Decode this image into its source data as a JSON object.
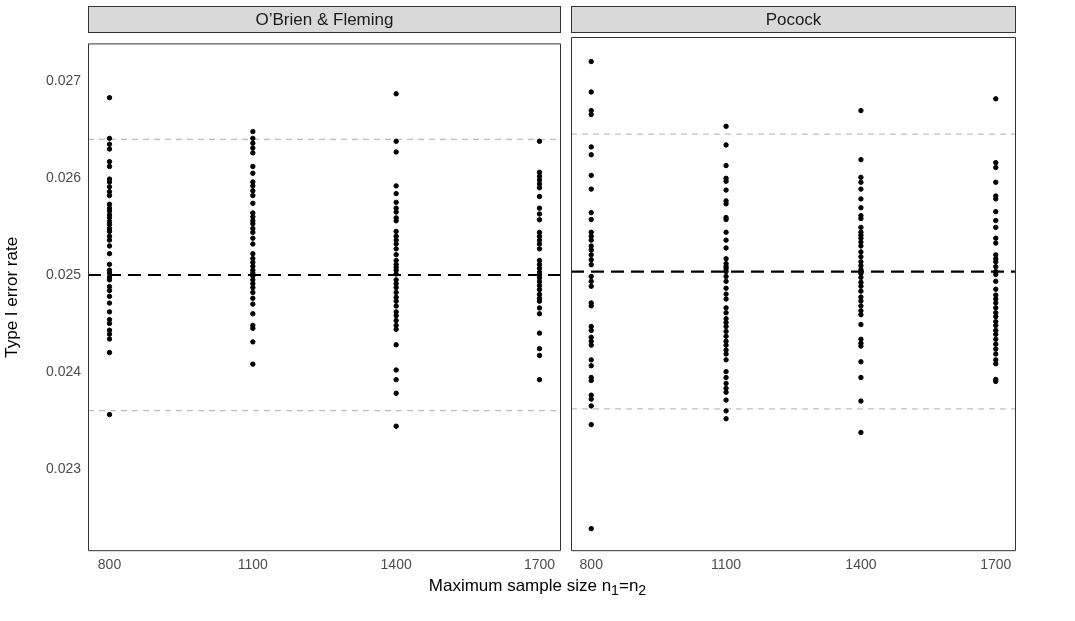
{
  "chart_data": [
    {
      "type": "scatter",
      "title": "O’Brien & Fleming",
      "xlabel": "Maximum sample size n$_{1}$=n$_{2}$",
      "ylabel": "Type I error rate",
      "marker": "circle",
      "xlim": [
        755,
        1745
      ],
      "xticks": [
        800,
        1100,
        1400,
        1700
      ],
      "ylim": [
        0.02215,
        0.02739
      ],
      "yticks": [
        0.023,
        0.024,
        0.025,
        0.026,
        0.027
      ],
      "ref_lines": [
        {
          "axis": "y",
          "value": 0.0264,
          "color": "#bebebe",
          "line_style": "dashed"
        },
        {
          "axis": "y",
          "value": 0.0236,
          "color": "#bebebe",
          "line_style": "dashed"
        },
        {
          "axis": "y",
          "value": 0.025,
          "color": "#000000",
          "line_style": "dashed"
        }
      ],
      "series": [
        {
          "color": "#000000",
          "x": [
            800,
            800,
            800,
            800,
            800,
            800,
            800,
            800,
            800,
            800,
            800,
            800,
            800,
            800,
            800,
            800,
            800,
            800,
            800,
            800,
            800,
            800,
            800,
            800,
            800,
            800,
            800,
            800,
            800,
            800,
            800,
            800,
            800,
            800,
            800,
            800,
            800,
            800,
            800,
            800,
            800,
            1100,
            1100,
            1100,
            1100,
            1100,
            1100,
            1100,
            1100,
            1100,
            1100,
            1100,
            1100,
            1100,
            1100,
            1100,
            1100,
            1100,
            1100,
            1100,
            1100,
            1100,
            1100,
            1100,
            1100,
            1100,
            1100,
            1100,
            1100,
            1100,
            1100,
            1100,
            1100,
            1100,
            1100,
            1100,
            1100,
            1100,
            1100,
            1400,
            1400,
            1400,
            1400,
            1400,
            1400,
            1400,
            1400,
            1400,
            1400,
            1400,
            1400,
            1400,
            1400,
            1400,
            1400,
            1400,
            1400,
            1400,
            1400,
            1400,
            1400,
            1400,
            1400,
            1400,
            1400,
            1400,
            1400,
            1400,
            1400,
            1400,
            1400,
            1400,
            1400,
            1400,
            1400,
            1400,
            1400,
            1700,
            1700,
            1700,
            1700,
            1700,
            1700,
            1700,
            1700,
            1700,
            1700,
            1700,
            1700,
            1700,
            1700,
            1700,
            1700,
            1700,
            1700,
            1700,
            1700,
            1700,
            1700,
            1700,
            1700,
            1700,
            1700,
            1700,
            1700,
            1700,
            1700,
            1700,
            1700,
            1700
          ],
          "values": [
            0.02683,
            0.02641,
            0.02635,
            0.0263,
            0.02617,
            0.02612,
            0.02599,
            0.02596,
            0.02591,
            0.02586,
            0.02582,
            0.02573,
            0.02569,
            0.02566,
            0.02562,
            0.02559,
            0.02555,
            0.02552,
            0.02548,
            0.02545,
            0.0254,
            0.02536,
            0.0253,
            0.02522,
            0.02511,
            0.02505,
            0.02502,
            0.02498,
            0.02495,
            0.02488,
            0.02484,
            0.02478,
            0.02471,
            0.02462,
            0.02454,
            0.0245,
            0.02443,
            0.02439,
            0.02434,
            0.0242,
            0.02356,
            0.02648,
            0.02641,
            0.02636,
            0.02631,
            0.02626,
            0.02612,
            0.02605,
            0.02596,
            0.02592,
            0.02587,
            0.02582,
            0.02574,
            0.02564,
            0.0256,
            0.02556,
            0.02553,
            0.02548,
            0.02544,
            0.02538,
            0.02532,
            0.02522,
            0.02517,
            0.02513,
            0.02509,
            0.02505,
            0.02502,
            0.02499,
            0.02495,
            0.02491,
            0.02487,
            0.02482,
            0.02476,
            0.0247,
            0.0246,
            0.02448,
            0.02445,
            0.02431,
            0.02408,
            0.02687,
            0.02638,
            0.02627,
            0.02592,
            0.02584,
            0.02575,
            0.02569,
            0.02565,
            0.02559,
            0.02556,
            0.02545,
            0.0254,
            0.02536,
            0.02532,
            0.02527,
            0.02521,
            0.02515,
            0.02511,
            0.02508,
            0.02505,
            0.02501,
            0.02495,
            0.02491,
            0.02487,
            0.02482,
            0.02477,
            0.02473,
            0.02468,
            0.02462,
            0.02458,
            0.02453,
            0.02448,
            0.02444,
            0.02428,
            0.02402,
            0.02392,
            0.02378,
            0.02344,
            0.02638,
            0.02606,
            0.02602,
            0.02598,
            0.02594,
            0.0259,
            0.02581,
            0.02569,
            0.02563,
            0.02557,
            0.02544,
            0.0254,
            0.02536,
            0.02532,
            0.02527,
            0.02515,
            0.02511,
            0.02507,
            0.02503,
            0.025,
            0.02497,
            0.02493,
            0.02489,
            0.02485,
            0.0248,
            0.02476,
            0.02473,
            0.02466,
            0.0246,
            0.0244,
            0.02424,
            0.02417,
            0.02392
          ]
        }
      ]
    },
    {
      "type": "scatter",
      "title": "Pocock",
      "marker": "circle",
      "tick_labels": "x",
      "xlim": [
        755,
        1745
      ],
      "xticks": [
        800,
        1100,
        1400,
        1700
      ],
      "ylim": [
        0.02215,
        0.02739
      ],
      "yticks": [
        0.023,
        0.024,
        0.025,
        0.026,
        0.027
      ],
      "ref_lines": [
        {
          "axis": "y",
          "value": 0.0264,
          "color": "#bebebe",
          "line_style": "dashed"
        },
        {
          "axis": "y",
          "value": 0.0236,
          "color": "#bebebe",
          "line_style": "dashed"
        },
        {
          "axis": "y",
          "value": 0.025,
          "color": "#000000",
          "line_style": "dashed"
        }
      ],
      "series": [
        {
          "color": "#000000",
          "x": [
            800,
            800,
            800,
            800,
            800,
            800,
            800,
            800,
            800,
            800,
            800,
            800,
            800,
            800,
            800,
            800,
            800,
            800,
            800,
            800,
            800,
            800,
            800,
            800,
            800,
            800,
            800,
            800,
            800,
            800,
            800,
            800,
            800,
            800,
            800,
            800,
            800,
            1100,
            1100,
            1100,
            1100,
            1100,
            1100,
            1100,
            1100,
            1100,
            1100,
            1100,
            1100,
            1100,
            1100,
            1100,
            1100,
            1100,
            1100,
            1100,
            1100,
            1100,
            1100,
            1100,
            1100,
            1100,
            1100,
            1100,
            1100,
            1100,
            1100,
            1100,
            1100,
            1100,
            1100,
            1100,
            1100,
            1100,
            1100,
            1100,
            1100,
            1100,
            1100,
            1100,
            1400,
            1400,
            1400,
            1400,
            1400,
            1400,
            1400,
            1400,
            1400,
            1400,
            1400,
            1400,
            1400,
            1400,
            1400,
            1400,
            1400,
            1400,
            1400,
            1400,
            1400,
            1400,
            1400,
            1400,
            1400,
            1400,
            1400,
            1400,
            1400,
            1400,
            1400,
            1400,
            1400,
            1400,
            1400,
            1400,
            1400,
            1400,
            1700,
            1700,
            1700,
            1700,
            1700,
            1700,
            1700,
            1700,
            1700,
            1700,
            1700,
            1700,
            1700,
            1700,
            1700,
            1700,
            1700,
            1700,
            1700,
            1700,
            1700,
            1700,
            1700,
            1700,
            1700,
            1700,
            1700,
            1700,
            1700,
            1700,
            1700,
            1700,
            1700,
            1700,
            1700,
            1700,
            1700
          ],
          "values": [
            0.02714,
            0.02683,
            0.02664,
            0.0266,
            0.02627,
            0.02619,
            0.02598,
            0.02584,
            0.0256,
            0.02553,
            0.0254,
            0.02536,
            0.02532,
            0.02526,
            0.02522,
            0.02517,
            0.02512,
            0.02507,
            0.02495,
            0.0249,
            0.02485,
            0.02468,
            0.02465,
            0.02444,
            0.0244,
            0.02433,
            0.02429,
            0.02425,
            0.0241,
            0.02404,
            0.02392,
            0.02389,
            0.02374,
            0.0237,
            0.02363,
            0.02344,
            0.02238,
            0.02648,
            0.02629,
            0.02608,
            0.02595,
            0.02592,
            0.02583,
            0.02572,
            0.02569,
            0.02555,
            0.02553,
            0.0254,
            0.02532,
            0.02524,
            0.02513,
            0.02508,
            0.02505,
            0.02503,
            0.025,
            0.02495,
            0.0249,
            0.02483,
            0.02477,
            0.02472,
            0.02463,
            0.02458,
            0.02452,
            0.02448,
            0.02444,
            0.02439,
            0.02434,
            0.02429,
            0.02425,
            0.0242,
            0.02416,
            0.0241,
            0.02398,
            0.02392,
            0.02386,
            0.02381,
            0.02377,
            0.02369,
            0.02358,
            0.0235,
            0.02664,
            0.02614,
            0.02596,
            0.02591,
            0.02584,
            0.02574,
            0.02565,
            0.02557,
            0.02554,
            0.02545,
            0.0254,
            0.02537,
            0.02534,
            0.0253,
            0.02526,
            0.0252,
            0.02515,
            0.0251,
            0.02506,
            0.02502,
            0.02498,
            0.02494,
            0.02489,
            0.02485,
            0.0248,
            0.02474,
            0.0247,
            0.02465,
            0.0246,
            0.02456,
            0.02446,
            0.02431,
            0.02427,
            0.02424,
            0.02408,
            0.02392,
            0.02368,
            0.02336,
            0.02676,
            0.02611,
            0.02606,
            0.02591,
            0.02577,
            0.02574,
            0.02561,
            0.02552,
            0.02545,
            0.02534,
            0.02529,
            0.02517,
            0.02513,
            0.0251,
            0.02505,
            0.025,
            0.02497,
            0.0249,
            0.02482,
            0.02476,
            0.02472,
            0.02468,
            0.02463,
            0.02458,
            0.02454,
            0.02449,
            0.02445,
            0.0244,
            0.02436,
            0.02431,
            0.02426,
            0.02421,
            0.02416,
            0.0241,
            0.02406,
            0.0239,
            0.02388
          ]
        }
      ]
    }
  ]
}
